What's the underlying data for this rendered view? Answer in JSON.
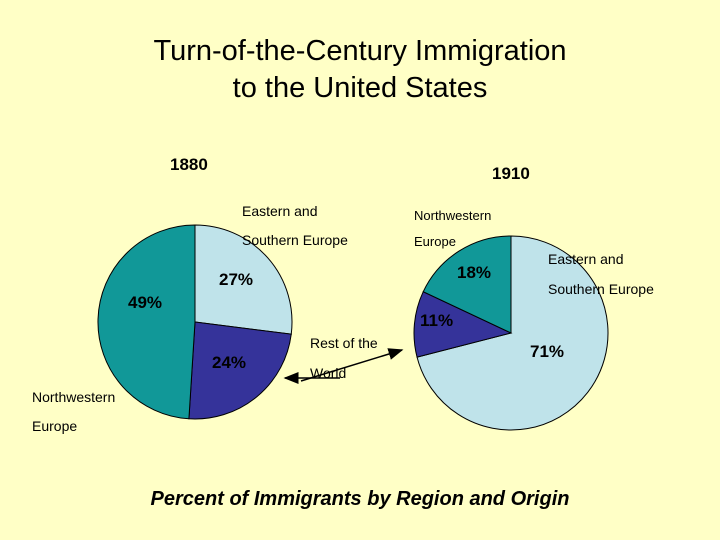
{
  "title_line1": "Turn-of-the-Century Immigration",
  "title_line2": "to the United States",
  "caption": "Percent of Immigrants by Region and Origin",
  "annotation": {
    "line1": "Rest of the",
    "line2": "World"
  },
  "chart_data": [
    {
      "type": "pie",
      "title": "1880",
      "slices": [
        {
          "label_line1": "Eastern and",
          "label_line2": "Southern Europe",
          "value": 27,
          "value_label": "27%",
          "color": "#BFE3EA"
        },
        {
          "label_line1": "Rest of the",
          "label_line2": "World",
          "value": 24,
          "value_label": "24%",
          "color": "#35339A"
        },
        {
          "label_line1": "Northwestern",
          "label_line2": "Europe",
          "value": 49,
          "value_label": "49%",
          "color": "#119898"
        }
      ]
    },
    {
      "type": "pie",
      "title": "1910",
      "slices": [
        {
          "label_line1": "Eastern and",
          "label_line2": "Southern Europe",
          "value": 71,
          "value_label": "71%",
          "color": "#BFE3EA"
        },
        {
          "label_line1": "Rest of the",
          "label_line2": "World",
          "value": 11,
          "value_label": "11%",
          "color": "#35339A"
        },
        {
          "label_line1": "Northwestern",
          "label_line2": "Europe",
          "value": 18,
          "value_label": "18%",
          "color": "#119898"
        }
      ]
    }
  ]
}
